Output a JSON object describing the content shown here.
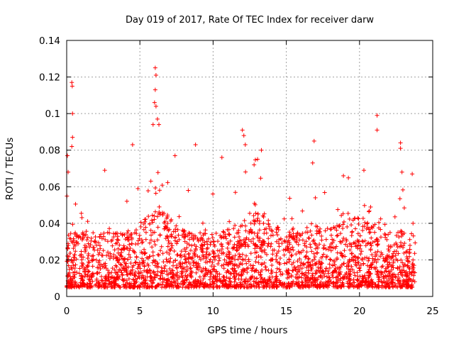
{
  "chart_data": {
    "type": "scatter",
    "title": "Day 019 of 2017, Rate Of TEC Index for receiver darw",
    "xlabel": "GPS time / hours",
    "ylabel": "ROTI / TECUs",
    "xlim": [
      0,
      25
    ],
    "ylim": [
      0,
      0.14
    ],
    "x_ticks": [
      "0",
      "5",
      "10",
      "15",
      "20",
      "25"
    ],
    "y_ticks": [
      "0",
      "0.02",
      "0.04",
      "0.06",
      "0.08",
      "0.1",
      "0.12",
      "0.14"
    ],
    "grid": true,
    "marker": "plus",
    "color": "#ff0000",
    "x_range_of_data": [
      0,
      23.8
    ],
    "typical_band": [
      0.005,
      0.035
    ],
    "outliers": [
      {
        "x": 0.05,
        "y": 0.077
      },
      {
        "x": 0.1,
        "y": 0.068
      },
      {
        "x": 0.35,
        "y": 0.117
      },
      {
        "x": 0.38,
        "y": 0.115
      },
      {
        "x": 0.4,
        "y": 0.1
      },
      {
        "x": 0.4,
        "y": 0.087
      },
      {
        "x": 0.35,
        "y": 0.082
      },
      {
        "x": 4.5,
        "y": 0.083
      },
      {
        "x": 5.9,
        "y": 0.094
      },
      {
        "x": 6.05,
        "y": 0.125
      },
      {
        "x": 6.1,
        "y": 0.121
      },
      {
        "x": 6.05,
        "y": 0.113
      },
      {
        "x": 6.0,
        "y": 0.106
      },
      {
        "x": 6.1,
        "y": 0.104
      },
      {
        "x": 6.2,
        "y": 0.097
      },
      {
        "x": 6.3,
        "y": 0.094
      },
      {
        "x": 8.8,
        "y": 0.083
      },
      {
        "x": 10.6,
        "y": 0.076
      },
      {
        "x": 12.0,
        "y": 0.091
      },
      {
        "x": 12.1,
        "y": 0.088
      },
      {
        "x": 12.2,
        "y": 0.083
      },
      {
        "x": 13.3,
        "y": 0.08
      },
      {
        "x": 16.9,
        "y": 0.085
      },
      {
        "x": 21.2,
        "y": 0.099
      },
      {
        "x": 21.2,
        "y": 0.091
      },
      {
        "x": 22.8,
        "y": 0.084
      },
      {
        "x": 22.8,
        "y": 0.081
      },
      {
        "x": 7.4,
        "y": 0.077
      },
      {
        "x": 12.8,
        "y": 0.072
      },
      {
        "x": 16.8,
        "y": 0.073
      },
      {
        "x": 23.6,
        "y": 0.067
      },
      {
        "x": 22.9,
        "y": 0.068
      },
      {
        "x": 20.3,
        "y": 0.069
      },
      {
        "x": 18.9,
        "y": 0.066
      },
      {
        "x": 2.6,
        "y": 0.069
      }
    ]
  }
}
